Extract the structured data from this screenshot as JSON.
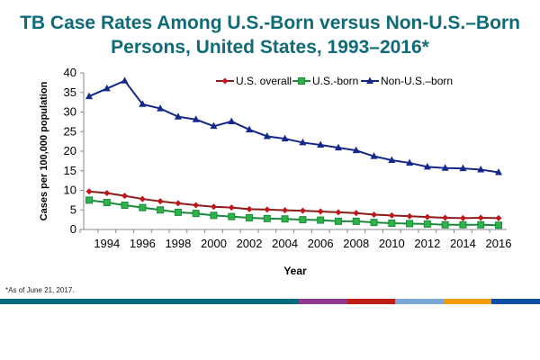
{
  "title_line1": "TB Case Rates Among U.S.-Born versus Non-U.S.–Born",
  "title_line2": "Persons, United States, 1993–2016*",
  "footnote": "*As of June 21, 2017.",
  "footer_bar_colors": [
    "#006b7a",
    "#8b3a8f",
    "#bf1e14",
    "#7aa7d6",
    "#f39a0b",
    "#0b4ea2"
  ],
  "chart_data": {
    "type": "line",
    "xlabel": "Year",
    "ylabel": "Cases per 100,000 population",
    "x": [
      1993,
      1994,
      1995,
      1996,
      1997,
      1998,
      1999,
      2000,
      2001,
      2002,
      2003,
      2004,
      2005,
      2006,
      2007,
      2008,
      2009,
      2010,
      2011,
      2012,
      2013,
      2014,
      2015,
      2016
    ],
    "xticks": [
      "1994",
      "1996",
      "1998",
      "2000",
      "2002",
      "2004",
      "2006",
      "2008",
      "2010",
      "2012",
      "2014",
      "2016"
    ],
    "yticks": [
      "0",
      "5",
      "10",
      "15",
      "20",
      "25",
      "30",
      "35",
      "40"
    ],
    "ylim": [
      0,
      40
    ],
    "grid": false,
    "legend": "top-right",
    "series": [
      {
        "name": "U.S. overall",
        "color": "#8b1a1a",
        "marker": "diamond",
        "values": [
          9.7,
          9.3,
          8.6,
          7.8,
          7.2,
          6.7,
          6.2,
          5.8,
          5.6,
          5.2,
          5.1,
          4.9,
          4.8,
          4.6,
          4.4,
          4.2,
          3.8,
          3.6,
          3.4,
          3.2,
          3.0,
          2.9,
          3.0,
          2.9
        ]
      },
      {
        "name": "U.S.-born",
        "color": "#1a8a3a",
        "marker": "square",
        "values": [
          7.5,
          6.9,
          6.2,
          5.6,
          5.0,
          4.4,
          4.1,
          3.6,
          3.3,
          3.0,
          2.8,
          2.7,
          2.5,
          2.4,
          2.1,
          2.1,
          1.8,
          1.6,
          1.5,
          1.4,
          1.2,
          1.2,
          1.2,
          1.1
        ]
      },
      {
        "name": "Non-U.S.–born",
        "color": "#13288a",
        "marker": "triangle",
        "values": [
          34,
          36,
          38,
          32,
          30.9,
          28.8,
          28.1,
          26.4,
          27.6,
          25.5,
          23.8,
          23.2,
          22.2,
          21.6,
          20.9,
          20.2,
          18.7,
          17.7,
          17.0,
          16.0,
          15.7,
          15.6,
          15.3,
          14.6
        ]
      }
    ]
  }
}
